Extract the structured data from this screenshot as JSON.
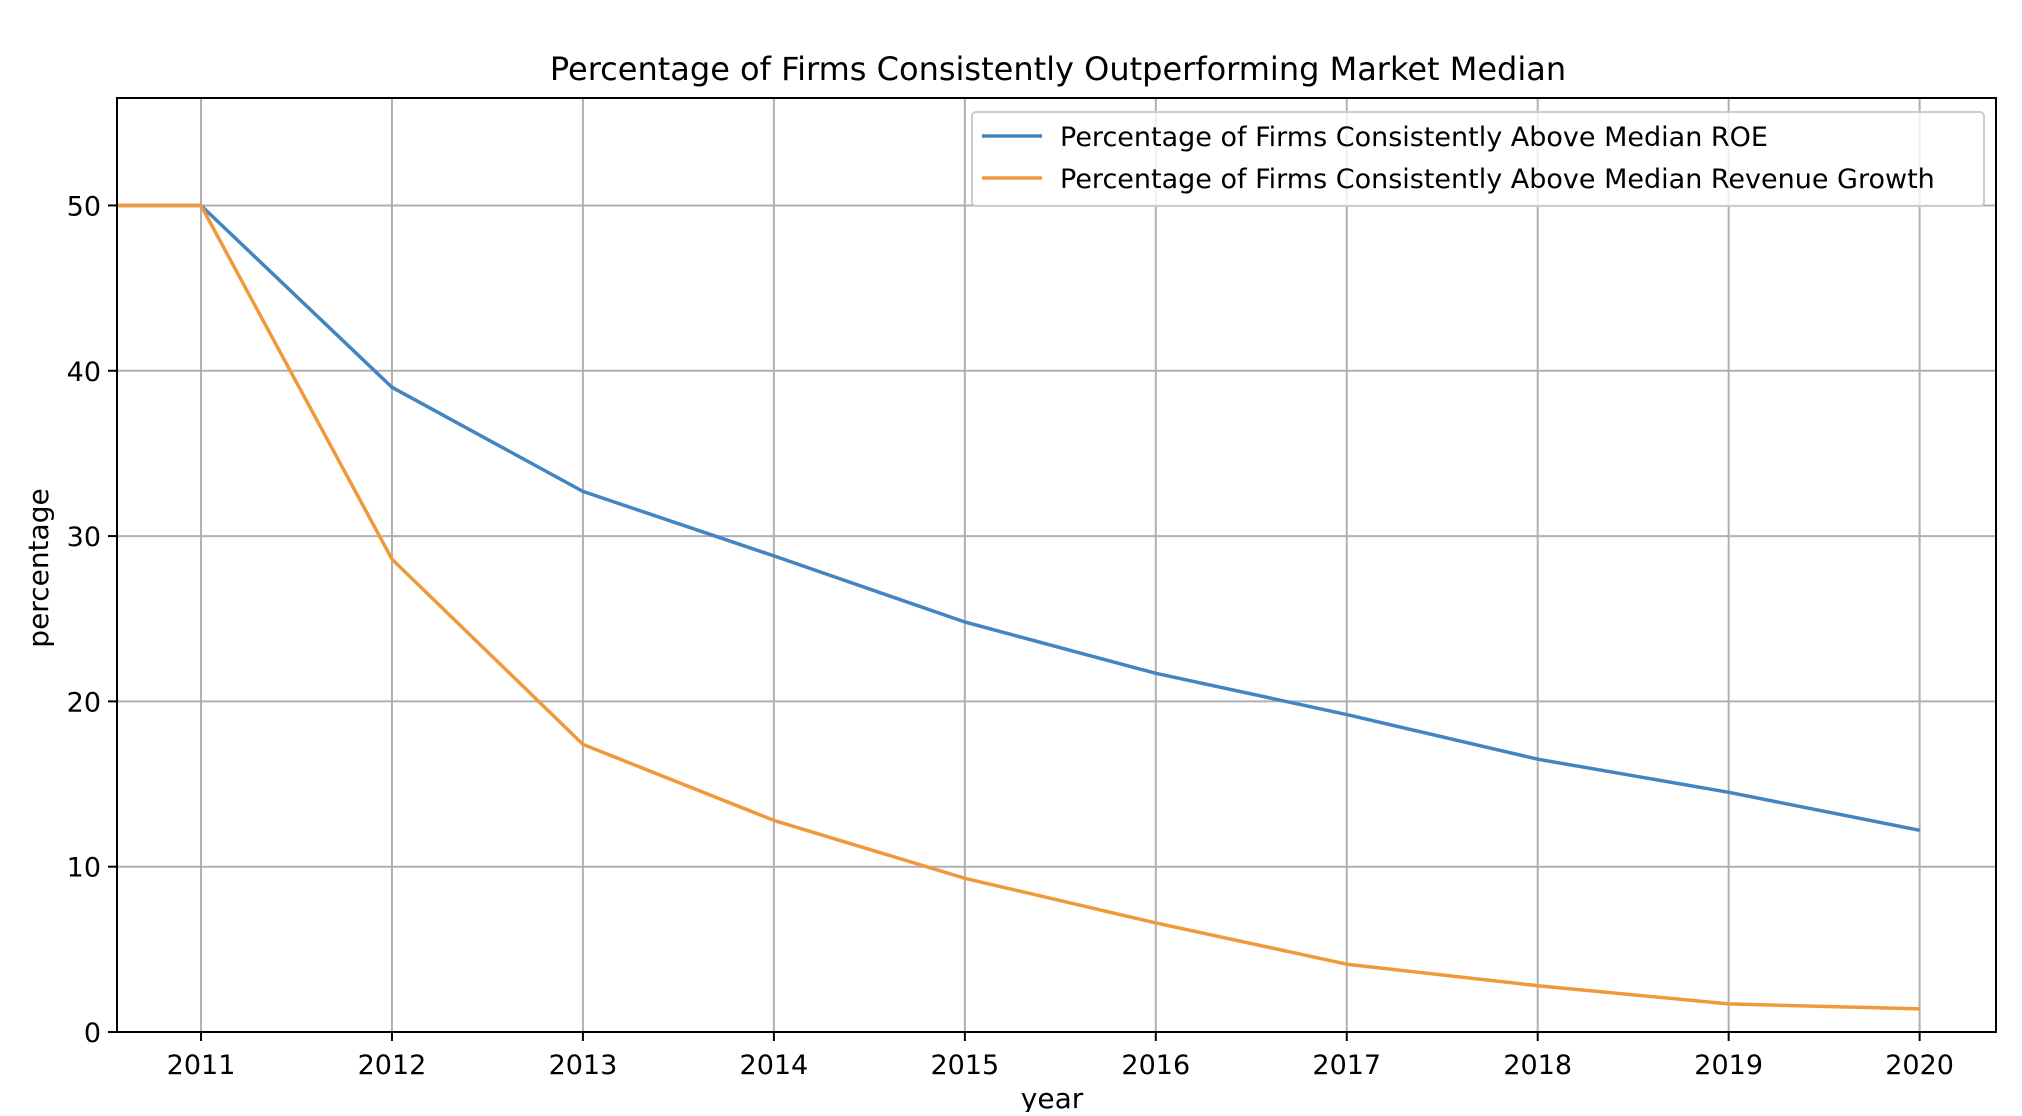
{
  "chart_data": {
    "type": "line",
    "title": "Percentage of Firms Consistently Outperforming Market Median",
    "xlabel": "year",
    "ylabel": "percentage",
    "x": [
      2011,
      2012,
      2013,
      2014,
      2015,
      2016,
      2017,
      2018,
      2019,
      2020
    ],
    "x_ticks": [
      "2011",
      "2012",
      "2013",
      "2014",
      "2015",
      "2016",
      "2017",
      "2018",
      "2019",
      "2020"
    ],
    "y_ticks": [
      "0",
      "10",
      "20",
      "30",
      "40",
      "50"
    ],
    "xlim": [
      2010.56,
      2020.4
    ],
    "ylim": [
      0,
      56.5
    ],
    "grid": true,
    "legend_position": "top-right",
    "series": [
      {
        "name": "Percentage of Firms Consistently Above Median ROE",
        "color": "#4285c0",
        "values": [
          50.0,
          39.0,
          32.7,
          28.8,
          24.8,
          21.7,
          19.2,
          16.5,
          14.5,
          12.2
        ]
      },
      {
        "name": "Percentage of Firms Consistently Above Median Revenue Growth",
        "color": "#f0993a",
        "values": [
          50.0,
          28.6,
          17.4,
          12.8,
          9.3,
          6.6,
          4.1,
          2.8,
          1.7,
          1.4
        ]
      }
    ]
  }
}
